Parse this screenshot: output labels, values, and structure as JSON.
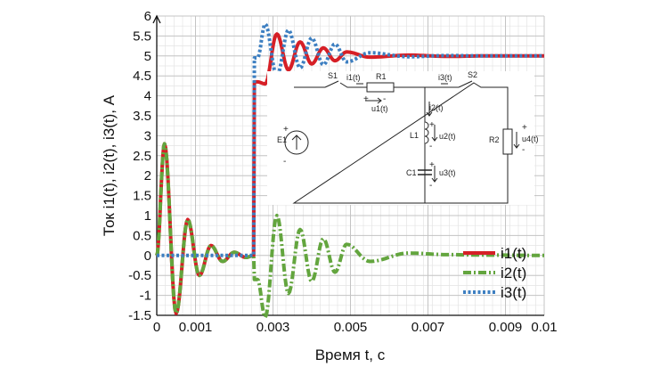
{
  "chart_data": {
    "type": "line",
    "xlabel": "Время t, с",
    "ylabel": "Ток i1(t), i2(t), i3(t), А",
    "xlim": [
      0,
      0.01
    ],
    "ylim": [
      -1.5,
      6
    ],
    "x_ticks": [
      0,
      0.001,
      0.003,
      0.005,
      0.007,
      0.009,
      0.01
    ],
    "x_tick_labels": [
      "0",
      "0.001",
      "0.003",
      "0.005",
      "0.007",
      "0.009",
      "0.01"
    ],
    "y_ticks": [
      -1.5,
      -1,
      -0.5,
      0,
      0.5,
      1,
      1.5,
      2,
      2.5,
      3,
      3.5,
      4,
      4.5,
      5,
      5.5,
      6
    ],
    "y_tick_labels": [
      "-1.5",
      "-1",
      "-0.5",
      "0",
      "0.5",
      "1",
      "1.5",
      "2",
      "2.5",
      "3",
      "3.5",
      "4",
      "4.5",
      "5",
      "5.5",
      "6"
    ],
    "grid": true,
    "legend_position": "bottom-right",
    "switch_time": 0.0025,
    "series": [
      {
        "name": "i1(t)",
        "color": "#d61f26",
        "style": "solid",
        "x": [
          0,
          0.0002,
          0.0005,
          0.0008,
          0.0011,
          0.0014,
          0.0017,
          0.002,
          0.0023,
          0.0025,
          0.0026,
          0.0028,
          0.0031,
          0.0034,
          0.0037,
          0.004,
          0.0043,
          0.0046,
          0.0049,
          0.0055,
          0.0065,
          0.0075,
          0.0085,
          0.01
        ],
        "y": [
          0,
          2.8,
          -1.45,
          0.9,
          -0.5,
          0.25,
          -0.15,
          0.08,
          -0.05,
          0.0,
          4.35,
          4.3,
          5.55,
          4.65,
          5.35,
          4.8,
          5.2,
          4.88,
          5.1,
          4.97,
          5.02,
          4.99,
          5.0,
          5.0
        ]
      },
      {
        "name": "i2(t)",
        "color": "#63a53e",
        "style": "dash-dot",
        "x": [
          0,
          0.0002,
          0.0005,
          0.0008,
          0.0011,
          0.0014,
          0.0017,
          0.002,
          0.0023,
          0.0025,
          0.0026,
          0.0028,
          0.0031,
          0.0034,
          0.0037,
          0.004,
          0.0043,
          0.0046,
          0.0049,
          0.0055,
          0.0065,
          0.0075,
          0.0085,
          0.01
        ],
        "y": [
          0,
          2.8,
          -1.45,
          0.9,
          -0.5,
          0.25,
          -0.15,
          0.08,
          -0.05,
          0.0,
          -0.6,
          -1.55,
          1.0,
          -0.95,
          0.65,
          -0.65,
          0.42,
          -0.42,
          0.28,
          -0.15,
          0.06,
          0.02,
          0.01,
          0.0
        ]
      },
      {
        "name": "i3(t)",
        "color": "#3d7fc1",
        "style": "dotted",
        "x": [
          0,
          0.0025,
          0.0026,
          0.0028,
          0.0031,
          0.0034,
          0.0037,
          0.004,
          0.0043,
          0.0046,
          0.0049,
          0.0055,
          0.0065,
          0.0075,
          0.0085,
          0.01
        ],
        "y": [
          0,
          0,
          4.95,
          5.8,
          4.5,
          5.65,
          4.7,
          5.45,
          4.78,
          5.3,
          4.85,
          5.08,
          4.98,
          5.01,
          5.0,
          5.0
        ]
      }
    ],
    "inset_circuit": {
      "labels": [
        "S1",
        "i1(t)",
        "R1",
        "u1(t)",
        "i3(t)",
        "S2",
        "E1",
        "i2(t)",
        "L1",
        "u2(t)",
        "R2",
        "u4(t)",
        "C1",
        "u3(t)"
      ],
      "signs": [
        "+",
        "-"
      ]
    }
  }
}
